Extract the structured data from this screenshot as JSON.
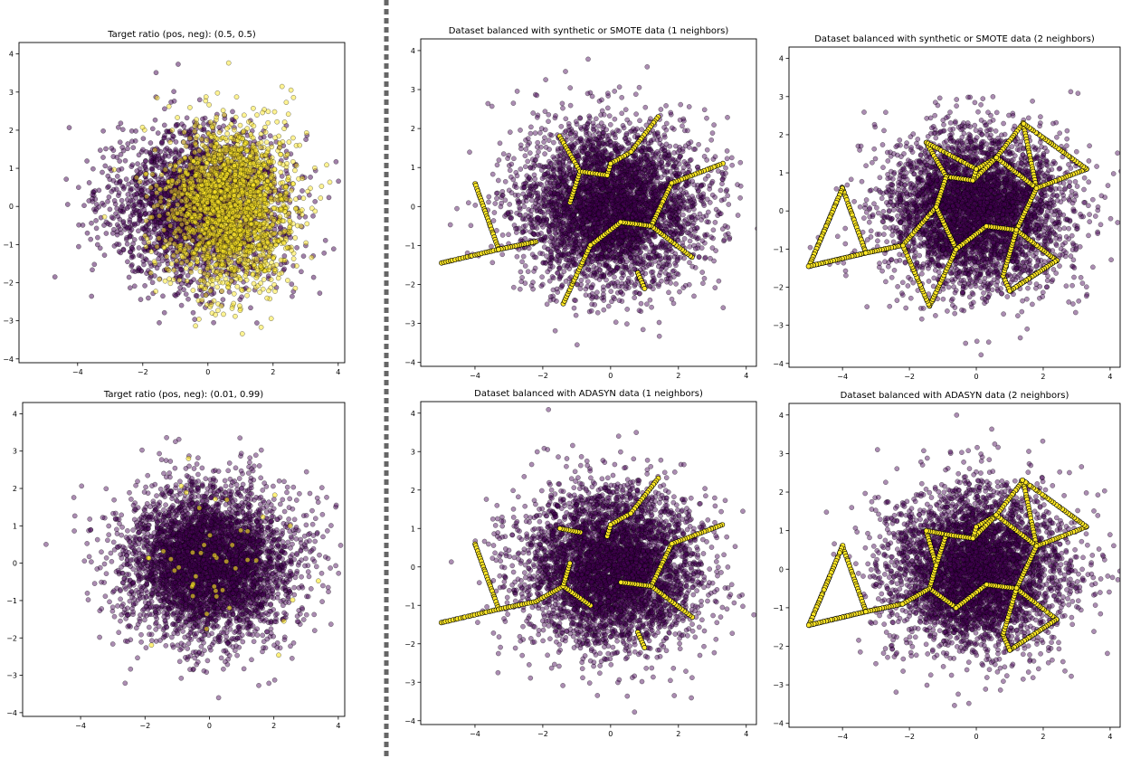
{
  "colors": {
    "purple": "#440154",
    "yellow": "#fde725",
    "edge": "#000000",
    "divider": "#666666"
  },
  "chart_data": [
    {
      "type": "scatter",
      "title": "Target ratio (pos, neg): (0.5, 0.5)",
      "xlim": [
        -5.8,
        4.2
      ],
      "ylim": [
        -4.1,
        4.3
      ],
      "xticks": [
        -4,
        -2,
        0,
        2,
        4
      ],
      "yticks": [
        -4,
        -3,
        -2,
        -1,
        0,
        1,
        2,
        3,
        4
      ],
      "series": [
        {
          "class": "negative",
          "color": "#440154",
          "opacity": 0.5,
          "distribution": {
            "mean": [
              -0.3,
              0.0
            ],
            "std": [
              1.35,
              1.0
            ],
            "n": 2500
          }
        },
        {
          "class": "positive",
          "color": "#fde725",
          "opacity": 0.5,
          "distribution": {
            "mean": [
              0.7,
              0.0
            ],
            "std": [
              1.0,
              1.05
            ],
            "n": 2000
          }
        }
      ]
    },
    {
      "type": "scatter",
      "title": "Dataset balanced with synthetic or SMOTE data (1 neighbors)",
      "xlim": [
        -5.6,
        4.3
      ],
      "ylim": [
        -4.1,
        4.3
      ],
      "xticks": [
        -4,
        -2,
        0,
        2,
        4
      ],
      "yticks": [
        -4,
        -3,
        -2,
        -1,
        0,
        1,
        2,
        3,
        4
      ],
      "series": [
        {
          "class": "negative",
          "color": "#440154",
          "opacity": 0.45,
          "distribution": {
            "mean": [
              0.0,
              0.0
            ],
            "std": [
              1.3,
              1.0
            ],
            "n": 4500
          }
        },
        {
          "class": "synthetic-positive",
          "color": "#fde725",
          "opacity": 1,
          "minority_points": [
            [
              -5.0,
              -1.45
            ],
            [
              -4.0,
              0.6
            ],
            [
              -3.3,
              -1.1
            ],
            [
              -2.2,
              -0.9
            ],
            [
              -1.5,
              1.8
            ],
            [
              -1.2,
              0.1
            ],
            [
              -0.6,
              -1.0
            ],
            [
              0.0,
              1.1
            ],
            [
              0.3,
              -0.4
            ],
            [
              0.6,
              1.4
            ],
            [
              1.0,
              -2.1
            ],
            [
              1.4,
              2.3
            ],
            [
              1.8,
              0.6
            ],
            [
              2.4,
              -1.3
            ],
            [
              3.3,
              1.1
            ],
            [
              -1.4,
              -2.5
            ],
            [
              -0.1,
              0.8
            ],
            [
              1.2,
              -0.5
            ],
            [
              0.8,
              -1.7
            ],
            [
              -0.9,
              0.9
            ]
          ],
          "k": 1
        }
      ]
    },
    {
      "type": "scatter",
      "title": "Dataset balanced with synthetic or SMOTE data (2 neighbors)",
      "xlim": [
        -5.6,
        4.3
      ],
      "ylim": [
        -4.1,
        4.3
      ],
      "xticks": [
        -4,
        -2,
        0,
        2,
        4
      ],
      "yticks": [
        -4,
        -3,
        -2,
        -1,
        0,
        1,
        2,
        3,
        4
      ],
      "series": [
        {
          "class": "negative",
          "color": "#440154",
          "opacity": 0.45,
          "distribution": {
            "mean": [
              0.0,
              0.0
            ],
            "std": [
              1.3,
              1.0
            ],
            "n": 4500
          }
        },
        {
          "class": "synthetic-positive",
          "color": "#fde725",
          "opacity": 1,
          "minority_points": [
            [
              -5.0,
              -1.45
            ],
            [
              -4.0,
              0.6
            ],
            [
              -3.3,
              -1.1
            ],
            [
              -2.2,
              -0.9
            ],
            [
              -1.5,
              1.8
            ],
            [
              -1.2,
              0.1
            ],
            [
              -0.6,
              -1.0
            ],
            [
              0.0,
              1.1
            ],
            [
              0.3,
              -0.4
            ],
            [
              0.6,
              1.4
            ],
            [
              1.0,
              -2.1
            ],
            [
              1.4,
              2.3
            ],
            [
              1.8,
              0.6
            ],
            [
              2.4,
              -1.3
            ],
            [
              3.3,
              1.1
            ],
            [
              -1.4,
              -2.5
            ],
            [
              -0.1,
              0.8
            ],
            [
              1.2,
              -0.5
            ],
            [
              0.8,
              -1.7
            ],
            [
              -0.9,
              0.9
            ]
          ],
          "k": 2
        }
      ]
    },
    {
      "type": "scatter",
      "title": "Target ratio (pos, neg): (0.01, 0.99)",
      "xlim": [
        -5.8,
        4.2
      ],
      "ylim": [
        -4.1,
        4.3
      ],
      "xticks": [
        -4,
        -2,
        0,
        2,
        4
      ],
      "yticks": [
        -4,
        -3,
        -2,
        -1,
        0,
        1,
        2,
        3,
        4
      ],
      "series": [
        {
          "class": "negative",
          "color": "#440154",
          "opacity": 0.45,
          "distribution": {
            "mean": [
              0.0,
              0.0
            ],
            "std": [
              1.3,
              1.0
            ],
            "n": 4500
          }
        },
        {
          "class": "positive",
          "color": "#fde725",
          "opacity": 0.6,
          "distribution": {
            "mean": [
              0.5,
              0.0
            ],
            "std": [
              1.2,
              1.0
            ],
            "n": 45
          }
        }
      ]
    },
    {
      "type": "scatter",
      "title": "Dataset balanced with ADASYN data (1 neighbors)",
      "xlim": [
        -5.6,
        4.3
      ],
      "ylim": [
        -4.1,
        4.3
      ],
      "xticks": [
        -4,
        -2,
        0,
        2,
        4
      ],
      "yticks": [
        -4,
        -3,
        -2,
        -1,
        0,
        1,
        2,
        3,
        4
      ],
      "series": [
        {
          "class": "negative",
          "color": "#440154",
          "opacity": 0.45,
          "distribution": {
            "mean": [
              0.0,
              0.0
            ],
            "std": [
              1.3,
              1.0
            ],
            "n": 4500
          }
        },
        {
          "class": "synthetic-positive",
          "color": "#fde725",
          "opacity": 1,
          "minority_points": [
            [
              -5.0,
              -1.45
            ],
            [
              -4.0,
              0.6
            ],
            [
              -3.3,
              -1.1
            ],
            [
              -2.2,
              -0.9
            ],
            [
              -1.5,
              1.0
            ],
            [
              -1.2,
              0.1
            ],
            [
              -0.6,
              -1.0
            ],
            [
              0.0,
              1.1
            ],
            [
              0.3,
              -0.4
            ],
            [
              0.6,
              1.4
            ],
            [
              1.0,
              -2.1
            ],
            [
              1.4,
              2.3
            ],
            [
              1.8,
              0.6
            ],
            [
              2.4,
              -1.3
            ],
            [
              3.3,
              1.1
            ],
            [
              -1.4,
              -0.5
            ],
            [
              -0.1,
              0.8
            ],
            [
              1.2,
              -0.5
            ],
            [
              0.8,
              -1.7
            ],
            [
              -0.9,
              0.9
            ]
          ],
          "k": 1
        }
      ]
    },
    {
      "type": "scatter",
      "title": "Dataset balanced with ADASYN data (2 neighbors)",
      "xlim": [
        -5.6,
        4.3
      ],
      "ylim": [
        -4.1,
        4.3
      ],
      "xticks": [
        -4,
        -2,
        0,
        2,
        4
      ],
      "yticks": [
        -4,
        -3,
        -2,
        -1,
        0,
        1,
        2,
        3,
        4
      ],
      "series": [
        {
          "class": "negative",
          "color": "#440154",
          "opacity": 0.45,
          "distribution": {
            "mean": [
              0.0,
              0.0
            ],
            "std": [
              1.3,
              1.0
            ],
            "n": 4500
          }
        },
        {
          "class": "synthetic-positive",
          "color": "#fde725",
          "opacity": 1,
          "minority_points": [
            [
              -5.0,
              -1.45
            ],
            [
              -4.0,
              0.6
            ],
            [
              -3.3,
              -1.1
            ],
            [
              -2.2,
              -0.9
            ],
            [
              -1.5,
              1.0
            ],
            [
              -1.2,
              0.1
            ],
            [
              -0.6,
              -1.0
            ],
            [
              0.0,
              1.1
            ],
            [
              0.3,
              -0.4
            ],
            [
              0.6,
              1.4
            ],
            [
              1.0,
              -2.1
            ],
            [
              1.4,
              2.3
            ],
            [
              1.8,
              0.6
            ],
            [
              2.4,
              -1.3
            ],
            [
              3.3,
              1.1
            ],
            [
              -1.4,
              -0.5
            ],
            [
              -0.1,
              0.8
            ],
            [
              1.2,
              -0.5
            ],
            [
              0.8,
              -1.7
            ],
            [
              -0.9,
              0.9
            ]
          ],
          "k": 2
        }
      ]
    }
  ]
}
